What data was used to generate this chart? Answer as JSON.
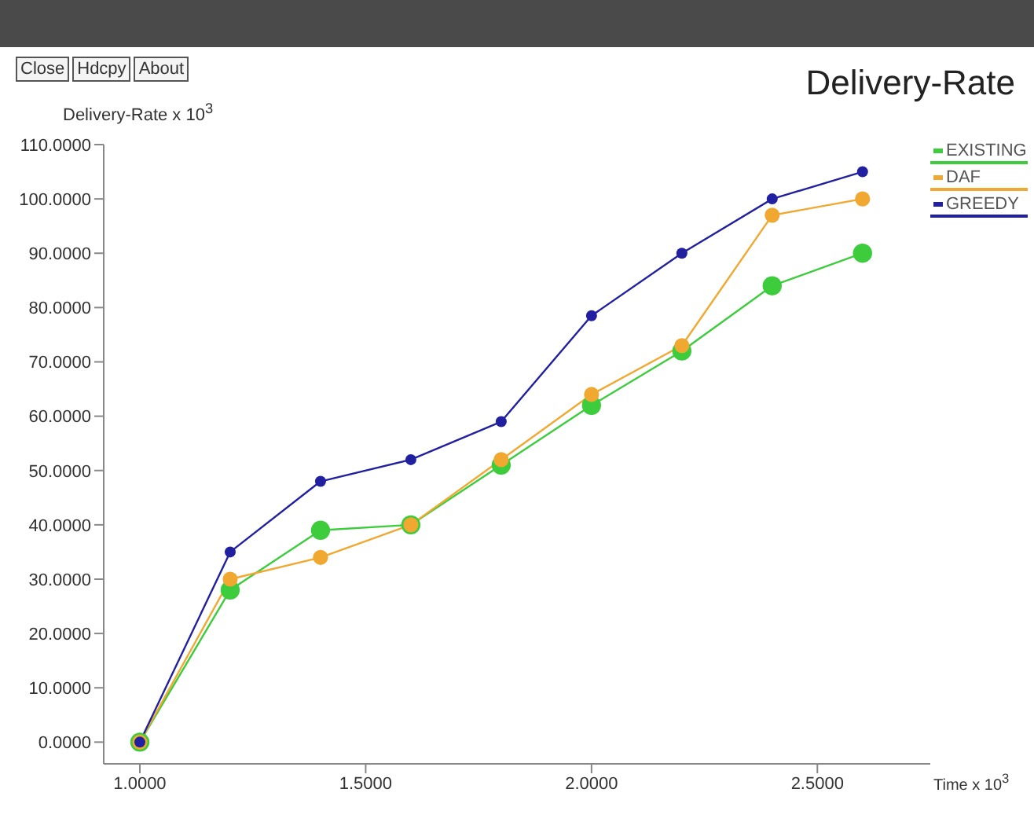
{
  "chart_data": {
    "type": "line",
    "title": "Delivery-Rate",
    "ylabel": "Delivery-Rate x 10$^{3}$",
    "xlabel": "Time x 10$^{3}$",
    "annotations": [
      "Close",
      "Hdcpy",
      "About"
    ],
    "x": [
      1.0,
      1.2,
      1.4,
      1.6,
      1.8,
      2.0,
      2.2,
      2.4,
      2.6
    ],
    "series": [
      {
        "name": "EXISTING",
        "color": "#3ccc3c",
        "values": [
          0,
          28,
          39,
          40,
          51,
          62,
          72,
          84,
          90
        ]
      },
      {
        "name": "DAF",
        "color": "#f0a830",
        "values": [
          0,
          30,
          34,
          40,
          52,
          64,
          73,
          97,
          100
        ]
      },
      {
        "name": "GREEDY",
        "color": "#2020a0",
        "values": [
          0,
          35,
          48,
          52,
          59,
          78.5,
          90,
          100,
          105
        ]
      }
    ],
    "xlim": [
      0.92,
      2.75
    ],
    "ylim": [
      -4,
      110
    ],
    "xticks": [
      {
        "value": 1,
        "label": "1.0000"
      },
      {
        "value": 1.5,
        "label": "1.5000"
      },
      {
        "value": 2,
        "label": "2.0000"
      },
      {
        "value": 2.5,
        "label": "2.5000"
      }
    ],
    "yticks": [
      {
        "value": 0,
        "label": "0.0000"
      },
      {
        "value": 10,
        "label": "10.0000"
      },
      {
        "value": 20,
        "label": "20.0000"
      },
      {
        "value": 30,
        "label": "30.0000"
      },
      {
        "value": 40,
        "label": "40.0000"
      },
      {
        "value": 50,
        "label": "50.0000"
      },
      {
        "value": 60,
        "label": "60.0000"
      },
      {
        "value": 70,
        "label": "70.0000"
      },
      {
        "value": 80,
        "label": "80.0000"
      },
      {
        "value": 90,
        "label": "90.0000"
      },
      {
        "value": 100,
        "label": "100.0000"
      },
      {
        "value": 110,
        "label": "110.0000"
      }
    ],
    "grid": false,
    "legend": "top right",
    "marker": "circle",
    "line_style": "solid"
  }
}
